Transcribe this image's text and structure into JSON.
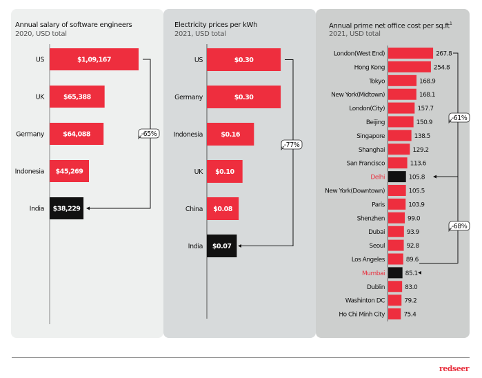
{
  "colors": {
    "bar": "#ee2e3e",
    "highlight": "#111111",
    "highlight_label": "#e8303e",
    "bracket": "#111111"
  },
  "logo": "redseer",
  "chart_data": [
    {
      "type": "bar",
      "orientation": "horizontal",
      "title": "Annual salary of software engineers",
      "subtitle": "2020, USD total",
      "categories": [
        "US",
        "UK",
        "Germany",
        "Indonesia",
        "India"
      ],
      "values": [
        109167,
        65388,
        64088,
        45269,
        38229
      ],
      "labels": [
        "$1,09,167",
        "$65,388",
        "$64,088",
        "$45,269",
        "$38,229"
      ],
      "highlight": [
        "India"
      ],
      "annotation": {
        "text": "-65%",
        "from": "US",
        "to": "India"
      }
    },
    {
      "type": "bar",
      "orientation": "horizontal",
      "title": "Electricity prices per kWh",
      "subtitle": "2021, USD total",
      "categories": [
        "US",
        "Germany",
        "Indonesia",
        "UK",
        "China",
        "India"
      ],
      "values": [
        0.3,
        0.3,
        0.16,
        0.1,
        0.08,
        0.07
      ],
      "labels": [
        "$0.30",
        "$0.30",
        "$0.16",
        "$0.10",
        "$0.08",
        "$0.07"
      ],
      "highlight": [
        "India"
      ],
      "annotation": {
        "text": "-77%",
        "from": "US",
        "to": "India"
      }
    },
    {
      "type": "bar",
      "orientation": "horizontal",
      "title": "Annual prime net office cost per sq.ft",
      "title_superscript": "1",
      "subtitle": "2021, USD total",
      "categories": [
        "London(West End)",
        "Hong Kong",
        "Tokyo",
        "New York(Midtown)",
        "London(City)",
        "Beijing",
        "Singapore",
        "Shanghai",
        "San Francisco",
        "Delhi",
        "New York(Downtown)",
        "Paris",
        "Shenzhen",
        "Dubai",
        "Seoul",
        "Los Angeles",
        "Mumbai",
        "Dublin",
        "Washinton DC",
        "Ho Chi Minh City"
      ],
      "values": [
        267.8,
        254.8,
        168.9,
        168.1,
        157.7,
        150.9,
        138.5,
        129.2,
        113.6,
        105.8,
        105.5,
        103.9,
        99.0,
        93.9,
        92.8,
        89.6,
        85.1,
        83.0,
        79.2,
        75.4
      ],
      "labels": [
        "267.8",
        "254.8",
        "168.9",
        "168.1",
        "157.7",
        "150.9",
        "138.5",
        "129.2",
        "113.6",
        "105.8",
        "105.5",
        "103.9",
        "99.0",
        "93.9",
        "92.8",
        "89.6",
        "85.1",
        "83.0",
        "79.2",
        "75.4"
      ],
      "highlight": [
        "Delhi",
        "Mumbai"
      ],
      "annotations": [
        {
          "text": "-61%",
          "from": "London(West End)",
          "to": "Delhi"
        },
        {
          "text": "-68%",
          "from": "London(West End)",
          "to": "Mumbai"
        }
      ]
    }
  ]
}
